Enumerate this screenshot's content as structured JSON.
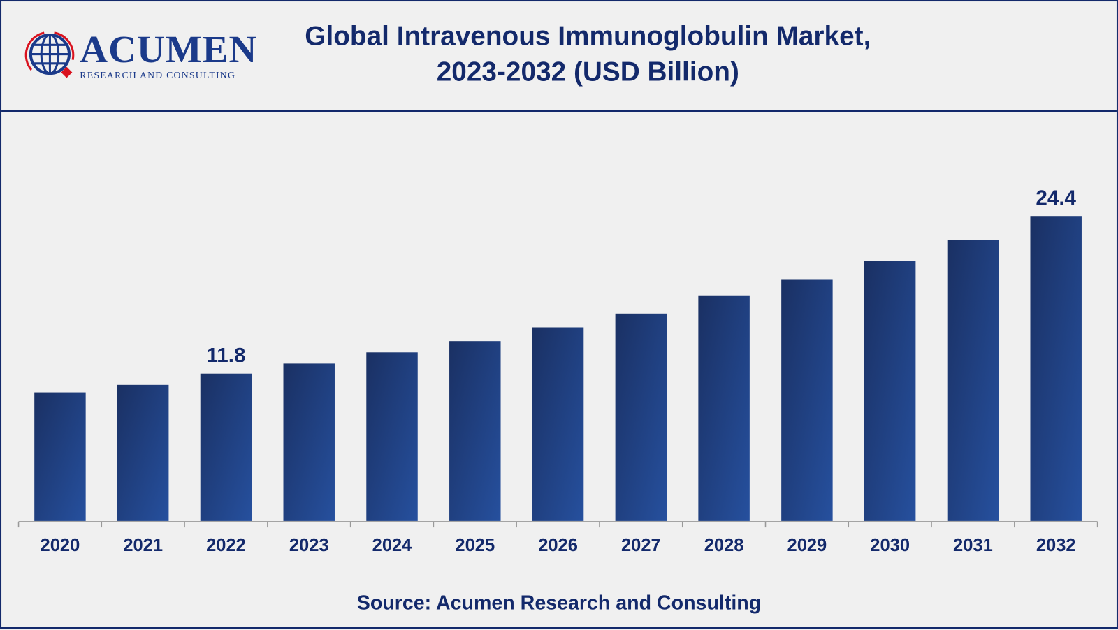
{
  "header": {
    "title_line1": "Global Intravenous Immunoglobulin Market,",
    "title_line2": "2023-2032 (USD Billion)",
    "logo_text": "ACUMEN",
    "logo_subtext": "RESEARCH AND CONSULTING"
  },
  "source": "Source: Acumen Research and Consulting",
  "colors": {
    "bar_dark": "#1a3063",
    "bar_light": "#26509e",
    "text": "#13296b",
    "logo_red": "#d9121f"
  },
  "chart_data": {
    "type": "bar",
    "title": "Global Intravenous Immunoglobulin Market, 2023-2032 (USD Billion)",
    "xlabel": "",
    "ylabel": "USD Billion",
    "categories": [
      "2020",
      "2021",
      "2022",
      "2023",
      "2024",
      "2025",
      "2026",
      "2027",
      "2028",
      "2029",
      "2030",
      "2031",
      "2032"
    ],
    "values": [
      10.3,
      10.9,
      11.8,
      12.6,
      13.5,
      14.4,
      15.5,
      16.6,
      18.0,
      19.3,
      20.8,
      22.5,
      24.4
    ],
    "data_labels": {
      "2022": "11.8",
      "2032": "24.4"
    },
    "ylim": [
      0,
      27
    ],
    "grid": false
  }
}
